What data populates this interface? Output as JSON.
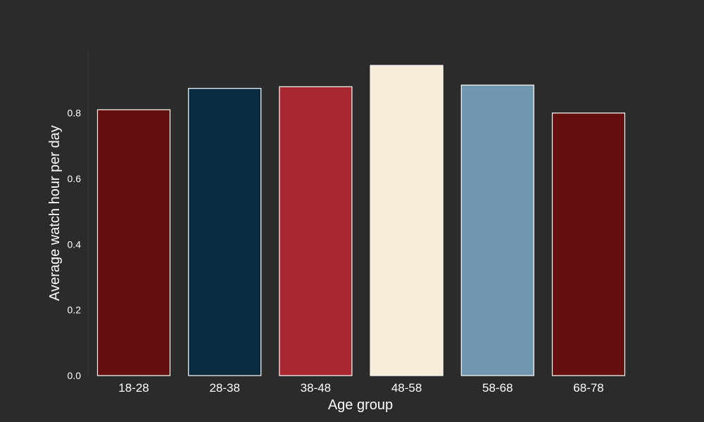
{
  "chart_data": {
    "type": "bar",
    "title": "",
    "xlabel": "Age group",
    "ylabel": "Average watch hour per day",
    "categories": [
      "18-28",
      "28-38",
      "38-48",
      "48-58",
      "58-68",
      "68-78"
    ],
    "values": [
      0.81,
      0.875,
      0.88,
      0.945,
      0.885,
      0.8
    ],
    "bar_colors": [
      "#660f0f",
      "#0b2c40",
      "#a82731",
      "#f7ecd9",
      "#7097b0",
      "#660f0f"
    ],
    "bar_edge_color": "#ffffff",
    "ylim": [
      0,
      0.99
    ],
    "yticks": [
      0.0,
      0.2,
      0.4,
      0.6,
      0.8
    ],
    "ytick_labels": [
      "0.0",
      "0.2",
      "0.4",
      "0.6",
      "0.8"
    ],
    "grid": false,
    "legend": "none",
    "background_color": "#2b2b2b",
    "text_color": "#ffffff"
  }
}
